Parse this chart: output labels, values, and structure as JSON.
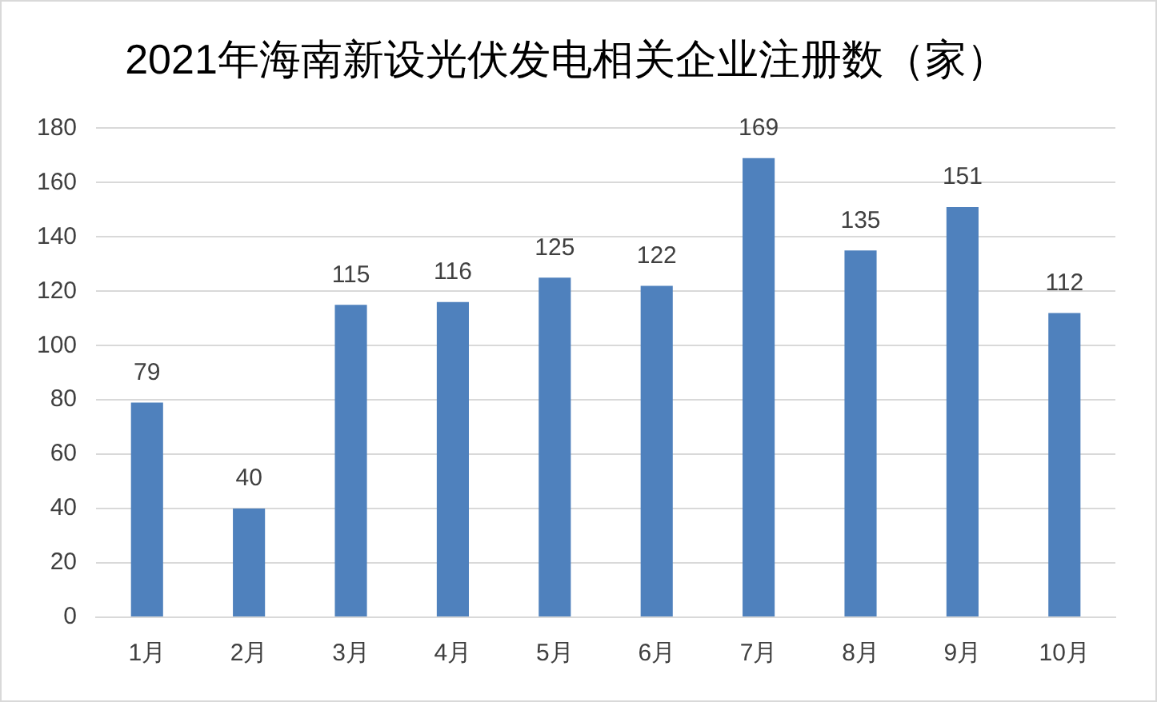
{
  "chart_data": {
    "type": "bar",
    "title": "2021年海南新设光伏发电相关企业注册数（家）",
    "categories": [
      "1月",
      "2月",
      "3月",
      "4月",
      "5月",
      "6月",
      "7月",
      "8月",
      "9月",
      "10月"
    ],
    "values": [
      79,
      40,
      115,
      116,
      125,
      122,
      169,
      135,
      151,
      112
    ],
    "color": "#4f81bd",
    "ylim": [
      0,
      180
    ],
    "yticks": [
      0,
      20,
      40,
      60,
      80,
      100,
      120,
      140,
      160,
      180
    ],
    "grid": "y",
    "data_labels": true
  }
}
